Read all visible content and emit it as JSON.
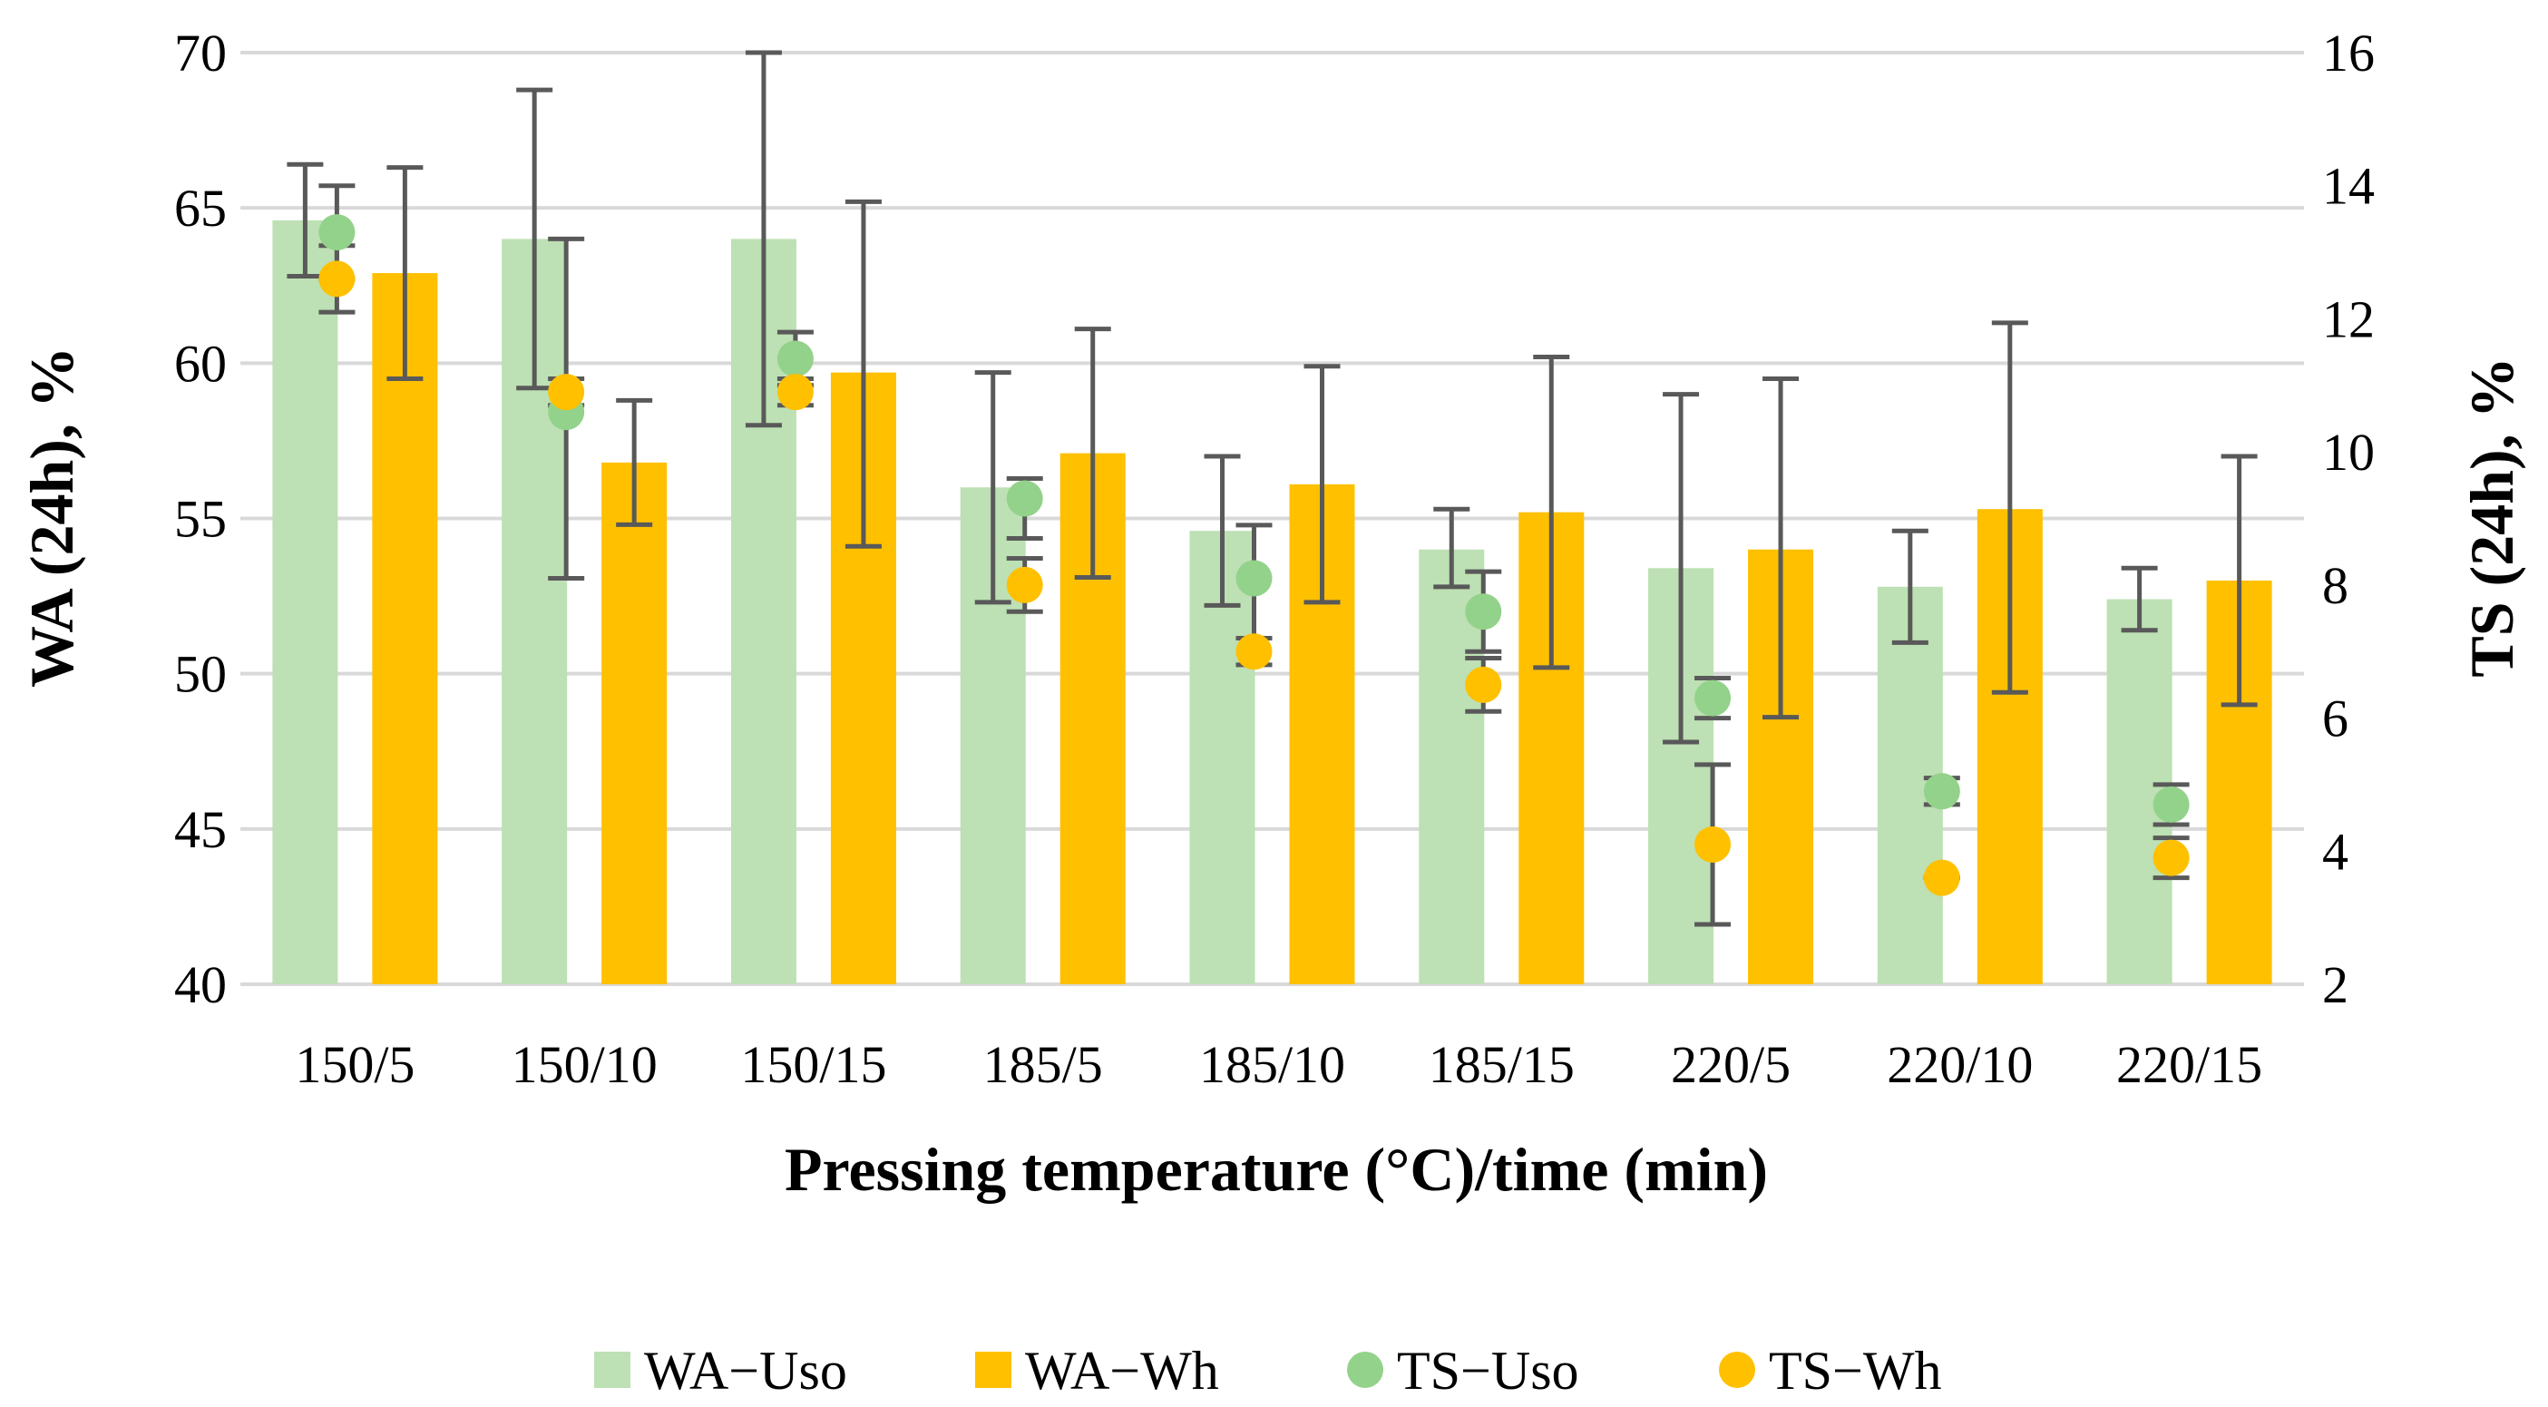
{
  "chart_data": {
    "type": "bar",
    "xlabel": "Pressing temperature (°C)/time (min)",
    "ylabel_left": "WA (24h), %",
    "ylabel_right": "TS (24h), %",
    "ylim_left": [
      40,
      70
    ],
    "ylim_right": [
      2,
      16
    ],
    "yticks_left": [
      "40",
      "45",
      "50",
      "55",
      "60",
      "65",
      "70"
    ],
    "yticks_right": [
      "2",
      "4",
      "6",
      "8",
      "10",
      "12",
      "14",
      "16"
    ],
    "grid": true,
    "legend_position": "bottom",
    "categories": [
      "150/5",
      "150/10",
      "150/15",
      "185/5",
      "185/10",
      "185/15",
      "220/5",
      "220/10",
      "220/15"
    ],
    "series": [
      {
        "name": "WA−Uso",
        "type": "bar",
        "axis": "left",
        "color": "#bde0b4",
        "values": [
          64.6,
          64.0,
          64.0,
          56.0,
          54.6,
          54.0,
          53.4,
          52.8,
          52.4
        ],
        "error_low": [
          62.8,
          59.2,
          58.0,
          52.3,
          52.2,
          52.8,
          47.8,
          51.0,
          51.4
        ],
        "error_high": [
          66.4,
          68.8,
          70.0,
          59.7,
          57.0,
          55.3,
          59.0,
          54.6,
          53.4
        ]
      },
      {
        "name": "WA−Wh",
        "type": "bar",
        "axis": "left",
        "color": "#ffc000",
        "values": [
          62.9,
          56.8,
          59.7,
          57.1,
          56.1,
          55.2,
          54.0,
          55.3,
          53.0
        ],
        "error_low": [
          59.5,
          54.8,
          54.1,
          53.1,
          52.3,
          50.2,
          48.6,
          49.4,
          49.0
        ],
        "error_high": [
          66.3,
          58.8,
          65.2,
          61.1,
          59.9,
          60.2,
          59.5,
          61.3,
          57.0
        ]
      },
      {
        "name": "TS−Uso",
        "type": "point",
        "axis": "right",
        "color": "#93d28a",
        "values": [
          13.3,
          10.6,
          11.4,
          9.3,
          8.1,
          7.6,
          6.3,
          4.9,
          4.7
        ],
        "error_low": [
          12.6,
          8.1,
          11.0,
          8.7,
          7.2,
          7.0,
          6.0,
          4.7,
          4.4
        ],
        "error_high": [
          14.0,
          13.2,
          11.8,
          9.6,
          8.9,
          8.2,
          6.6,
          5.1,
          5.0
        ]
      },
      {
        "name": "TS−Wh",
        "type": "point",
        "axis": "right",
        "color": "#ffc000",
        "values": [
          12.6,
          10.9,
          10.9,
          8.0,
          7.0,
          6.5,
          4.1,
          3.6,
          3.9
        ],
        "error_low": [
          12.1,
          10.7,
          10.7,
          7.6,
          6.8,
          6.1,
          2.9,
          3.6,
          3.6
        ],
        "error_high": [
          13.1,
          11.1,
          11.1,
          8.4,
          7.2,
          6.9,
          5.3,
          3.6,
          4.2
        ]
      }
    ]
  }
}
